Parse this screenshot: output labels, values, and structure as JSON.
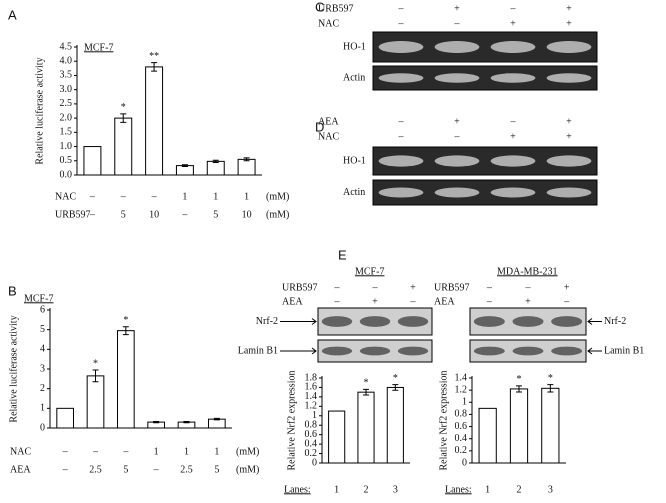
{
  "chart_data": [
    {
      "type": "bar",
      "panel": "A",
      "title": "MCF-7",
      "y_label": "Relative luciferase activity",
      "categories": [
        null,
        null,
        null,
        null,
        null,
        null
      ],
      "values": [
        1.0,
        2.0,
        3.8,
        0.33,
        0.48,
        0.55
      ],
      "errors": [
        0,
        0.15,
        0.15,
        0.03,
        0.04,
        0.05
      ],
      "annotations": [
        null,
        "*",
        "**",
        null,
        null,
        null
      ],
      "treatment_rows": [
        {
          "name": "NAC",
          "labels": [
            "–",
            "–",
            "–",
            "1",
            "1",
            "1"
          ],
          "unit": "(mM)"
        },
        {
          "name": "URB597",
          "labels": [
            "–",
            "5",
            "10",
            "–",
            "5",
            "10"
          ],
          "unit": "(mM)"
        }
      ],
      "ylim": [
        0,
        4.5
      ],
      "yticks": [
        {
          "value": 0,
          "label": "0.0"
        },
        0.5,
        {
          "value": 1,
          "label": "1.0"
        },
        1.5,
        {
          "value": 2,
          "label": "2.0"
        },
        2.5,
        {
          "value": 3,
          "label": "3.0"
        },
        3.5,
        {
          "value": 4,
          "label": "4.0"
        },
        4.5
      ],
      "color": "#ffffff"
    },
    {
      "type": "bar",
      "panel": "B",
      "title": "MCF-7",
      "y_label": "Relative luciferase activity",
      "categories": [
        null,
        null,
        null,
        null,
        null,
        null
      ],
      "values": [
        1,
        2.65,
        4.95,
        0.3,
        0.3,
        0.45
      ],
      "errors": [
        0,
        0.3,
        0.2,
        0.03,
        0.03,
        0.04
      ],
      "annotations": [
        null,
        "*",
        "*",
        null,
        null,
        null
      ],
      "treatment_rows": [
        {
          "name": "NAC",
          "labels": [
            "–",
            "–",
            "–",
            "1",
            "1",
            "1"
          ],
          "unit": "(mM)"
        },
        {
          "name": "AEA",
          "labels": [
            "–",
            "2.5",
            "5",
            "–",
            "2.5",
            "5"
          ],
          "unit": "(mM)"
        }
      ],
      "ylim": [
        0,
        6
      ],
      "yticks": [
        0,
        1,
        2,
        3,
        4,
        5,
        6
      ],
      "color": "#ffffff"
    },
    {
      "type": "bar",
      "y_label": "Relative Nrf2 expression",
      "x_label": "Lanes:",
      "categories": [
        "1",
        "2",
        "3"
      ],
      "values": [
        1.1,
        1.5,
        1.6
      ],
      "errors": [
        0,
        0.06,
        0.06
      ],
      "annotations": [
        null,
        "*",
        "*"
      ],
      "ylim": [
        0,
        1.8
      ],
      "yticks": [
        0,
        0.2,
        0.4,
        0.6,
        0.8,
        1,
        1.2,
        1.4,
        1.6,
        1.8
      ],
      "color": "#ffffff"
    },
    {
      "type": "bar",
      "y_label": "Relative Nrf2 expression",
      "x_label": "Lanes:",
      "categories": [
        "1",
        "2",
        "3"
      ],
      "values": [
        0.9,
        1.22,
        1.23
      ],
      "errors": [
        0,
        0.05,
        0.06
      ],
      "annotations": [
        null,
        "*",
        "*"
      ],
      "ylim": [
        0,
        1.4
      ],
      "yticks": [
        0,
        0.2,
        0.4,
        0.6,
        0.8,
        1,
        1.2,
        1.4
      ],
      "color": "#ffffff"
    }
  ],
  "blots": [
    {
      "panel": "C",
      "rows": [
        {
          "name": "URB597",
          "labels": [
            "–",
            "+",
            "–",
            "+"
          ]
        },
        {
          "name": "NAC",
          "labels": [
            "–",
            "–",
            "+",
            "+"
          ]
        }
      ],
      "bands": [
        "HO-1",
        "Actin"
      ]
    },
    {
      "panel": "D",
      "rows": [
        {
          "name": "AEA",
          "labels": [
            "–",
            "+",
            "–",
            "+"
          ]
        },
        {
          "name": "NAC",
          "labels": [
            "–",
            "–",
            "+",
            "+"
          ]
        }
      ],
      "bands": [
        "HO-1",
        "Actin"
      ]
    },
    {
      "panel": "E",
      "title": "MCF-7",
      "rows": [
        {
          "name": "URB597",
          "labels": [
            "–",
            "–",
            "+"
          ]
        },
        {
          "name": "AEA",
          "labels": [
            "–",
            "+",
            "–"
          ]
        }
      ],
      "bands": [
        "Nrf-2",
        "Lamin B1"
      ]
    },
    {
      "title": "MDA-MB-231",
      "rows": [
        {
          "name": "URB597",
          "labels": [
            "–",
            "–",
            "+"
          ]
        },
        {
          "name": "AEA",
          "labels": [
            "–",
            "+",
            "–"
          ]
        }
      ],
      "bands": [
        "Nrf-2",
        "Lamin B1"
      ]
    }
  ]
}
